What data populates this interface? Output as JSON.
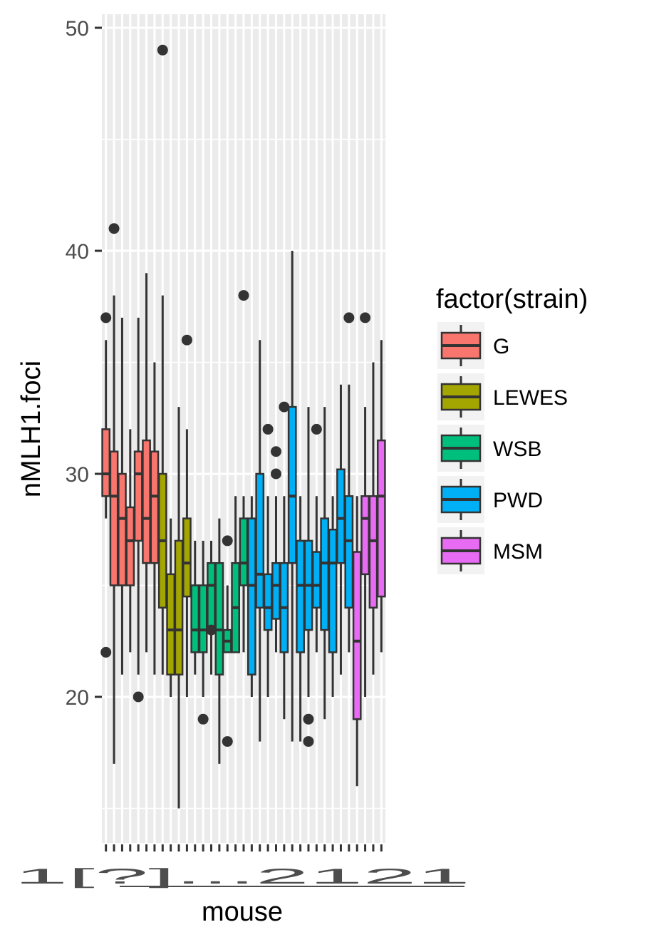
{
  "chart_data": {
    "type": "boxplot",
    "xlabel": "mouse",
    "ylabel": "nMLH1.foci",
    "ylim": [
      13.5,
      51
    ],
    "y_ticks": [
      20,
      30,
      40,
      50
    ],
    "grid": true,
    "legend": {
      "title": "factor(strain)",
      "position": "right",
      "entries": [
        {
          "name": "G",
          "color": "#F8766D"
        },
        {
          "name": "LEWES",
          "color": "#A3A500"
        },
        {
          "name": "WSB",
          "color": "#00BF7D"
        },
        {
          "name": "PWD",
          "color": "#00B0F6"
        },
        {
          "name": "MSM",
          "color": "#E76BF3"
        }
      ]
    },
    "x_tick_labels_overlapping": "1[?]...2121",
    "boxes": [
      {
        "strain": "G",
        "lw": 28,
        "q1": 29,
        "med": 30,
        "q3": 32,
        "uw": 36,
        "outliers": [
          37,
          22
        ]
      },
      {
        "strain": "G",
        "lw": 17,
        "q1": 25,
        "med": 29,
        "q3": 31,
        "uw": 38,
        "outliers": [
          41
        ]
      },
      {
        "strain": "G",
        "lw": 21,
        "q1": 25,
        "med": 28,
        "q3": 30,
        "uw": 37,
        "outliers": []
      },
      {
        "strain": "G",
        "lw": 22,
        "q1": 25,
        "med": 27,
        "q3": 28.5,
        "uw": 32,
        "outliers": []
      },
      {
        "strain": "G",
        "lw": 21,
        "q1": 27,
        "med": 30,
        "q3": 31,
        "uw": 37,
        "outliers": [
          20
        ]
      },
      {
        "strain": "G",
        "lw": 22,
        "q1": 26,
        "med": 28,
        "q3": 31.5,
        "uw": 39,
        "outliers": []
      },
      {
        "strain": "G",
        "lw": 21,
        "q1": 26,
        "med": 29,
        "q3": 31,
        "uw": 35,
        "outliers": []
      },
      {
        "strain": "LEWES",
        "lw": 21,
        "q1": 24,
        "med": 27,
        "q3": 30,
        "uw": 38,
        "outliers": [
          49
        ]
      },
      {
        "strain": "LEWES",
        "lw": 20,
        "q1": 21,
        "med": 23,
        "q3": 25.5,
        "uw": 28,
        "outliers": []
      },
      {
        "strain": "LEWES",
        "lw": 15,
        "q1": 21,
        "med": 23,
        "q3": 27,
        "uw": 33,
        "outliers": []
      },
      {
        "strain": "LEWES",
        "lw": 20,
        "q1": 24.5,
        "med": 26,
        "q3": 28,
        "uw": 32,
        "outliers": [
          36
        ]
      },
      {
        "strain": "WSB",
        "lw": 21,
        "q1": 22,
        "med": 23,
        "q3": 25,
        "uw": 27,
        "outliers": []
      },
      {
        "strain": "WSB",
        "lw": 20,
        "q1": 22,
        "med": 23,
        "q3": 25,
        "uw": 27,
        "outliers": [
          19
        ]
      },
      {
        "strain": "WSB",
        "lw": 21,
        "q1": 23,
        "med": 25,
        "q3": 26,
        "uw": 27,
        "outliers": [
          23
        ]
      },
      {
        "strain": "WSB",
        "lw": 17,
        "q1": 21,
        "med": 23,
        "q3": 26,
        "uw": 28,
        "outliers": []
      },
      {
        "strain": "WSB",
        "lw": 22,
        "q1": 22,
        "med": 22.5,
        "q3": 23,
        "uw": 25,
        "outliers": [
          27,
          18
        ]
      },
      {
        "strain": "WSB",
        "lw": 22,
        "q1": 22,
        "med": 24,
        "q3": 26,
        "uw": 29,
        "outliers": []
      },
      {
        "strain": "WSB",
        "lw": 22,
        "q1": 25,
        "med": 26,
        "q3": 28,
        "uw": 29,
        "outliers": [
          38
        ]
      },
      {
        "strain": "PWD",
        "lw": 20,
        "q1": 21,
        "med": 25,
        "q3": 28,
        "uw": 29,
        "outliers": []
      },
      {
        "strain": "PWD",
        "lw": 18,
        "q1": 24,
        "med": 25.5,
        "q3": 30,
        "uw": 36,
        "outliers": []
      },
      {
        "strain": "PWD",
        "lw": 20,
        "q1": 23,
        "med": 24,
        "q3": 25.5,
        "uw": 29,
        "outliers": [
          32
        ]
      },
      {
        "strain": "PWD",
        "lw": 22,
        "q1": 23.5,
        "med": 25,
        "q3": 26,
        "uw": 29,
        "outliers": [
          31,
          30
        ]
      },
      {
        "strain": "PWD",
        "lw": 19,
        "q1": 22,
        "med": 24,
        "q3": 26,
        "uw": 29,
        "outliers": [
          33
        ]
      },
      {
        "strain": "PWD",
        "lw": 18,
        "q1": 26,
        "med": 29,
        "q3": 33,
        "uw": 40,
        "outliers": []
      },
      {
        "strain": "PWD",
        "lw": 18,
        "q1": 22,
        "med": 25,
        "q3": 27,
        "uw": 29,
        "outliers": []
      },
      {
        "strain": "PWD",
        "lw": 20,
        "q1": 23,
        "med": 25,
        "q3": 27,
        "uw": 33,
        "outliers": [
          19,
          18
        ]
      },
      {
        "strain": "PWD",
        "lw": 22,
        "q1": 24,
        "med": 25,
        "q3": 26.5,
        "uw": 29,
        "outliers": [
          32
        ]
      },
      {
        "strain": "PWD",
        "lw": 19,
        "q1": 23,
        "med": 26,
        "q3": 28,
        "uw": 33,
        "outliers": []
      },
      {
        "strain": "PWD",
        "lw": 20,
        "q1": 22,
        "med": 26,
        "q3": 27.5,
        "uw": 29,
        "outliers": []
      },
      {
        "strain": "PWD",
        "lw": 21,
        "q1": 26,
        "med": 28,
        "q3": 30.2,
        "uw": 34,
        "outliers": []
      },
      {
        "strain": "PWD",
        "lw": 22,
        "q1": 24,
        "med": 27,
        "q3": 29,
        "uw": 34,
        "outliers": [
          37
        ]
      },
      {
        "strain": "MSM",
        "lw": 16,
        "q1": 19,
        "med": 22.5,
        "q3": 26.5,
        "uw": 29,
        "outliers": []
      },
      {
        "strain": "MSM",
        "lw": 20,
        "q1": 25.5,
        "med": 28,
        "q3": 29,
        "uw": 33,
        "outliers": [
          37
        ]
      },
      {
        "strain": "MSM",
        "lw": 21,
        "q1": 24,
        "med": 27,
        "q3": 29,
        "uw": 35,
        "outliers": []
      },
      {
        "strain": "MSM",
        "lw": 22,
        "q1": 24.5,
        "med": 29,
        "q3": 31.5,
        "uw": 36,
        "outliers": []
      }
    ]
  }
}
